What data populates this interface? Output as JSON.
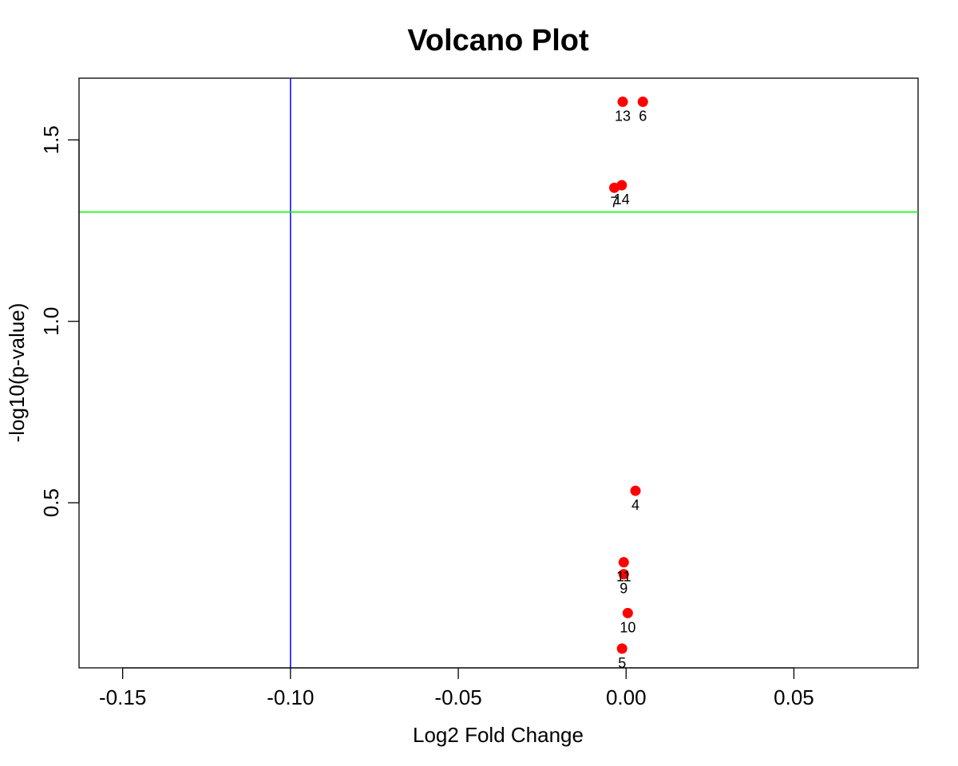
{
  "chart_data": {
    "type": "scatter",
    "title": "Volcano Plot",
    "xlabel": "Log2 Fold Change",
    "ylabel": "-log10(p-value)",
    "xlim": [
      -0.163,
      0.087
    ],
    "ylim": [
      0.045,
      1.67
    ],
    "x_ticks": [
      -0.15,
      -0.1,
      -0.05,
      0.0,
      0.05
    ],
    "x_tick_labels": [
      "-0.15",
      "-0.10",
      "-0.05",
      "0.00",
      "0.05"
    ],
    "y_ticks": [
      0.5,
      1.0,
      1.5
    ],
    "y_tick_labels": [
      "0.5",
      "1.0",
      "1.5"
    ],
    "grid": false,
    "point_color": "#ff0000",
    "points": [
      {
        "label": "13",
        "x": -0.001,
        "y": 1.605
      },
      {
        "label": "6",
        "x": 0.005,
        "y": 1.605
      },
      {
        "label": "7",
        "x": -0.0035,
        "y": 1.368
      },
      {
        "label": "14",
        "x": -0.0013,
        "y": 1.375
      },
      {
        "label": "4",
        "x": 0.0028,
        "y": 0.533
      },
      {
        "label": "11",
        "x": -0.0007,
        "y": 0.336
      },
      {
        "label": "9",
        "x": -0.0007,
        "y": 0.303
      },
      {
        "label": "10",
        "x": 0.0005,
        "y": 0.196
      },
      {
        "label": "5",
        "x": -0.0012,
        "y": 0.098
      }
    ],
    "reference_lines": [
      {
        "orientation": "vertical",
        "value": -0.1,
        "color": "#0000ff"
      },
      {
        "orientation": "horizontal",
        "value": 1.30103,
        "color": "#00ff00"
      }
    ]
  }
}
